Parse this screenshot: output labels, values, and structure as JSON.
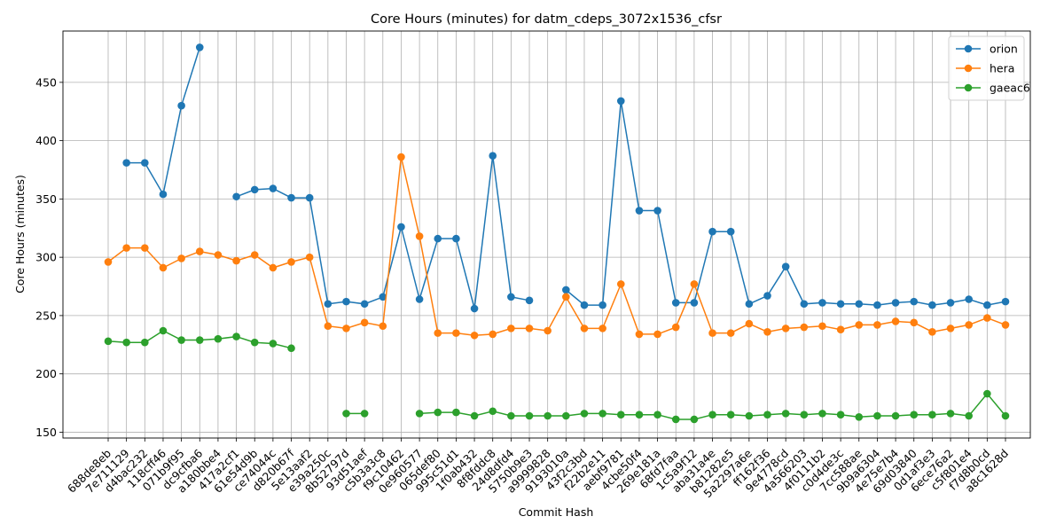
{
  "chart_data": {
    "type": "line",
    "title": "Core Hours (minutes) for datm_cdeps_3072x1536_cfsr",
    "xlabel": "Commit Hash",
    "ylabel": "Core Hours (minutes)",
    "ylim": [
      145,
      494
    ],
    "yticks": [
      150,
      200,
      250,
      300,
      350,
      400,
      450
    ],
    "grid": true,
    "legend_position": "top-right",
    "categories": [
      "688de8eb",
      "7e711129",
      "d4bac232",
      "118cff46",
      "071b9f95",
      "dc9cfba6",
      "a180bbe4",
      "417a2cf1",
      "61e54d9b",
      "ce74044c",
      "d820b67f",
      "5e13aaf2",
      "e39a250c",
      "8b52797d",
      "93d51aef",
      "c5b3a3c8",
      "f9c10462",
      "0e960577",
      "065def80",
      "995c51d1",
      "1f0ab432",
      "8f8fddc8",
      "24d8dfd4",
      "5750b9e3",
      "a9999828",
      "9193010a",
      "43f2c3bd",
      "f22b2e11",
      "aebf9781",
      "4cbe50f4",
      "269e181a",
      "68fd7faa",
      "1c5a9f12",
      "aba31a4e",
      "b81282e5",
      "5a2297a6e",
      "ff162f36",
      "9e4778cd",
      "4a566203",
      "4f0111b2",
      "c0d4de3c",
      "7cc588ae",
      "9b9a6304",
      "4e75e7b4",
      "69d03840",
      "0d1af3e3",
      "6ece76a2",
      "c5f801e4",
      "f7d8b0cd",
      "a8c1628d"
    ],
    "series": [
      {
        "name": "orion",
        "color": "#1f77b4",
        "values": [
          null,
          381,
          381,
          354,
          430,
          480,
          null,
          352,
          358,
          359,
          351,
          351,
          260,
          262,
          260,
          266,
          326,
          264,
          316,
          316,
          256,
          387,
          266,
          263,
          null,
          272,
          259,
          259,
          434,
          340,
          340,
          261,
          261,
          322,
          322,
          260,
          267,
          292,
          260,
          261,
          260,
          260,
          259,
          261,
          262,
          259,
          261,
          264,
          259,
          262
        ]
      },
      {
        "name": "hera",
        "color": "#ff7f0e",
        "values": [
          296,
          308,
          308,
          291,
          299,
          305,
          302,
          297,
          302,
          291,
          296,
          300,
          241,
          239,
          244,
          241,
          386,
          318,
          235,
          235,
          233,
          234,
          239,
          239,
          237,
          266,
          239,
          239,
          277,
          234,
          234,
          240,
          277,
          235,
          235,
          243,
          236,
          239,
          240,
          241,
          238,
          242,
          242,
          245,
          244,
          236,
          239,
          242,
          248,
          242
        ]
      },
      {
        "name": "gaeac6",
        "color": "#2ca02c",
        "values": [
          228,
          227,
          227,
          237,
          229,
          229,
          230,
          232,
          227,
          226,
          222,
          null,
          null,
          166,
          166,
          null,
          null,
          166,
          167,
          167,
          164,
          168,
          164,
          164,
          164,
          164,
          166,
          166,
          165,
          165,
          165,
          161,
          161,
          165,
          165,
          164,
          165,
          166,
          165,
          166,
          165,
          163,
          164,
          164,
          165,
          165,
          166,
          164,
          183,
          164
        ]
      }
    ]
  }
}
